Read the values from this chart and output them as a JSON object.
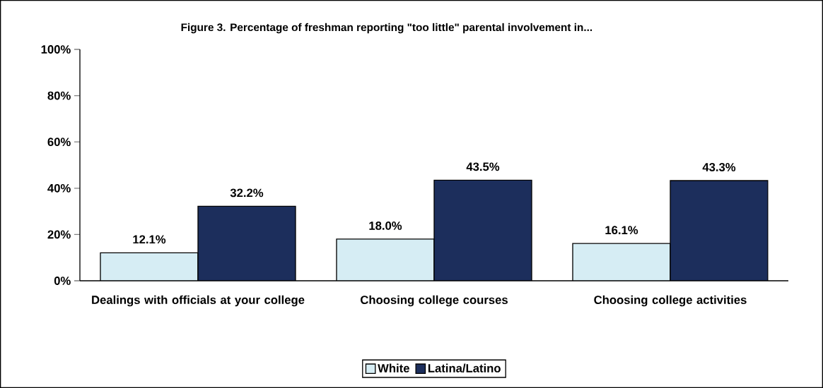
{
  "chart_data": {
    "type": "bar",
    "title": "Figure 3.  Percentage of freshman reporting \"too little\" parental involvement in...",
    "categories": [
      "Dealings with officials at your college",
      "Choosing college courses",
      "Choosing college activities"
    ],
    "series": [
      {
        "name": "White",
        "color": "#d6edf4",
        "values": [
          12.1,
          18.0,
          16.1
        ],
        "value_labels": [
          "12.1%",
          "18.0%",
          "16.1%"
        ]
      },
      {
        "name": "Latina/Latino",
        "color": "#1c2e5c",
        "values": [
          32.2,
          43.5,
          43.3
        ],
        "value_labels": [
          "32.2%",
          "43.5%",
          "43.3%"
        ]
      }
    ],
    "ylim": [
      0,
      100
    ],
    "yticks": [
      {
        "value": 0,
        "label": "0%"
      },
      {
        "value": 20,
        "label": "20%"
      },
      {
        "value": 40,
        "label": "40%"
      },
      {
        "value": 60,
        "label": "60%"
      },
      {
        "value": 80,
        "label": "80%"
      },
      {
        "value": 100,
        "label": "100%"
      }
    ],
    "grid": false,
    "legend": "bottom"
  }
}
